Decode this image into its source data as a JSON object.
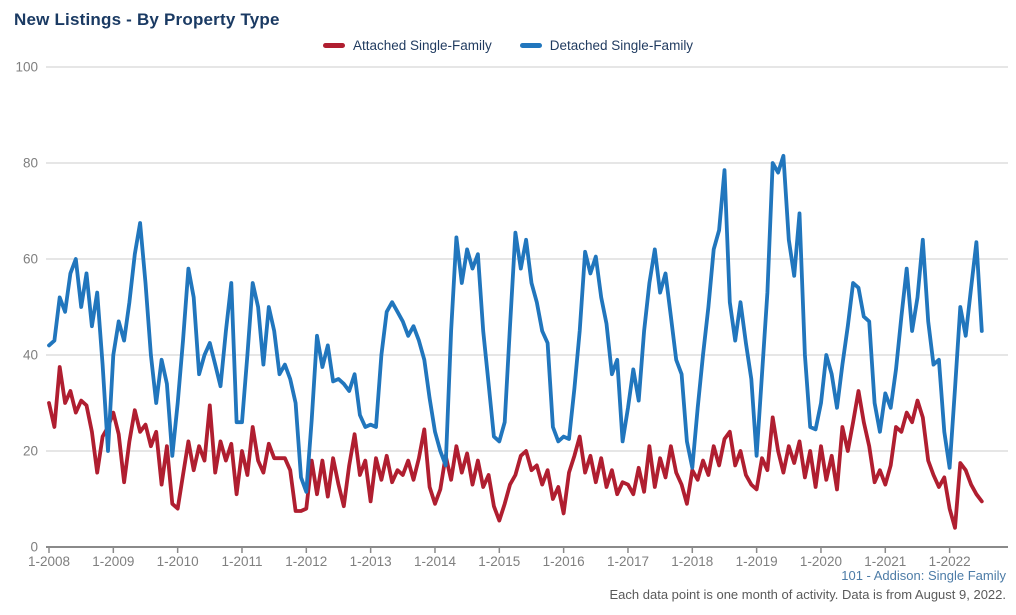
{
  "header": {
    "title": "New Listings - By Property Type"
  },
  "footer": {
    "line1": "101 - Addison: Single Family",
    "line2": "Each data point is one month of activity. Data is from August 9, 2022."
  },
  "colors": {
    "attached": "#b01e30",
    "detached": "#2176bd",
    "title_text": "#1a3a63",
    "legend_text": "#1f3a5f",
    "tick_text": "#7f7f7f",
    "gridline": "#cccccc",
    "axis": "#8a8a8a",
    "footnote_link": "#4d7ca7",
    "footnote_text": "#5a5a5a"
  },
  "chart_data": {
    "type": "line",
    "title": "New Listings - By Property Type",
    "xlabel": "",
    "ylabel": "",
    "ylim": [
      0,
      100
    ],
    "yticks": [
      0,
      20,
      40,
      60,
      80,
      100
    ],
    "grid": "horizontal",
    "legend_position": "top-center",
    "x_start": "1-2008",
    "x_end": "7-2022",
    "points_per_year": 12,
    "xticks": [
      "1-2008",
      "1-2009",
      "1-2010",
      "1-2011",
      "1-2012",
      "1-2013",
      "1-2014",
      "1-2015",
      "1-2016",
      "1-2017",
      "1-2018",
      "1-2019",
      "1-2020",
      "1-2021",
      "1-2022"
    ],
    "series": [
      {
        "name": "Attached Single-Family",
        "color": "#b01e30",
        "values": [
          30,
          25,
          37.5,
          30,
          32.5,
          28,
          30.5,
          29.5,
          24,
          15.5,
          23,
          25,
          28,
          23.5,
          13.5,
          22,
          28.5,
          24,
          25.5,
          21,
          24,
          13,
          21,
          9,
          8,
          15,
          22,
          16,
          21,
          18,
          29.5,
          15.5,
          22,
          18,
          21.5,
          11,
          20,
          15,
          25,
          18,
          15.5,
          21.5,
          18.5,
          18.5,
          18.5,
          16,
          7.5,
          7.5,
          8,
          18,
          11,
          18,
          10.5,
          18.5,
          13,
          8.5,
          17,
          23.5,
          15,
          18,
          9.5,
          18.5,
          14,
          19,
          13.5,
          16,
          15,
          18,
          14,
          18.5,
          24.5,
          12.5,
          9,
          12,
          19,
          14,
          21,
          15.5,
          19.5,
          13,
          18,
          12.5,
          15,
          8.5,
          5.5,
          9,
          13,
          15,
          19,
          20,
          16,
          17,
          13,
          16,
          10,
          12.5,
          7,
          15.5,
          19,
          23,
          15.5,
          19,
          13.5,
          18.5,
          12.5,
          16,
          11,
          13.5,
          13,
          11,
          16.5,
          11.5,
          21,
          12.5,
          18.5,
          14.5,
          21,
          15.5,
          13,
          9,
          16,
          14,
          18,
          15,
          21,
          17,
          22.5,
          24,
          17,
          20,
          15,
          13,
          12,
          18.5,
          16,
          27,
          20,
          15.5,
          21,
          17.5,
          22,
          14.5,
          20,
          12.5,
          21,
          14,
          19,
          12,
          25,
          20,
          26,
          32.5,
          26,
          21,
          13.5,
          16,
          13,
          17,
          25,
          24,
          28,
          26,
          30.5,
          27,
          18,
          15,
          12.5,
          14.5,
          8,
          4,
          17.5,
          16,
          13,
          11,
          9.5
        ]
      },
      {
        "name": "Detached Single-Family",
        "color": "#2176bd",
        "values": [
          42,
          43,
          52,
          49,
          57,
          60,
          50,
          57,
          46,
          53,
          38,
          20,
          40,
          47,
          43,
          51,
          61,
          67.5,
          55,
          40,
          30,
          39,
          34,
          19,
          30,
          43,
          58,
          52,
          36,
          40,
          42.5,
          38,
          33.5,
          45,
          55,
          26,
          26,
          40,
          55,
          50,
          38,
          50,
          45,
          36,
          38,
          35,
          30,
          14.5,
          11.5,
          26.5,
          44,
          37.5,
          42,
          34.5,
          35,
          34,
          32.5,
          36,
          27.5,
          25,
          25.5,
          25,
          40,
          49,
          51,
          49,
          47,
          44,
          46,
          43,
          39,
          31,
          24,
          20,
          17,
          45,
          64.5,
          55,
          62,
          58,
          61,
          45,
          34,
          23,
          22,
          26,
          46,
          65.5,
          58,
          64,
          55,
          51,
          45,
          42.5,
          25,
          22,
          23,
          22.5,
          33,
          45,
          61.5,
          57,
          60.5,
          52,
          46.5,
          36,
          39,
          22,
          29,
          37,
          30.5,
          45,
          55,
          62,
          53,
          57,
          48,
          39,
          36,
          22,
          16.5,
          29,
          40,
          50,
          62,
          66,
          78.5,
          51,
          43,
          51,
          42.5,
          35,
          19,
          36,
          53,
          80,
          78,
          81.5,
          64,
          56.5,
          69.5,
          40,
          25,
          24.5,
          30,
          40,
          36,
          29,
          38,
          46,
          55,
          54,
          48,
          47,
          30,
          24,
          32,
          29,
          37,
          48,
          58,
          45,
          52,
          64,
          47,
          38,
          39,
          24,
          16.5,
          33,
          50,
          44,
          54,
          63.5,
          45
        ]
      }
    ],
    "footnote1": "101 - Addison: Single Family",
    "footnote2": "Each data point is one month of activity. Data is from August 9, 2022."
  }
}
